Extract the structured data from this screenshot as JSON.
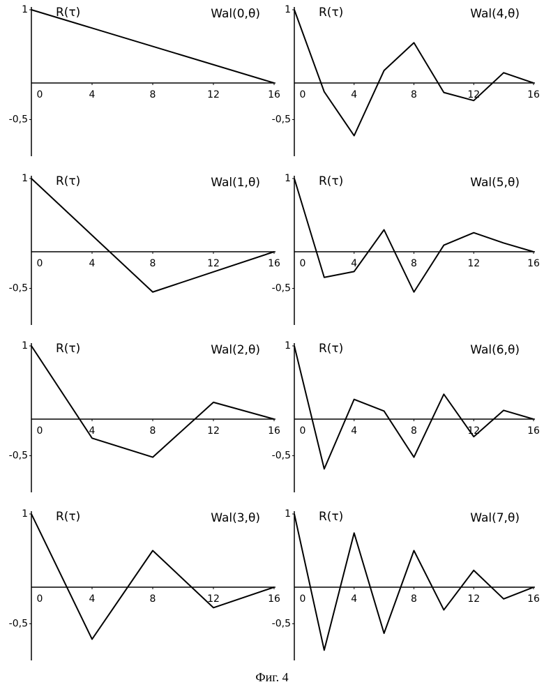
{
  "chart_data": [
    {
      "type": "line",
      "title": "Wal(0,θ)",
      "ylabel": "R(τ)",
      "x": [
        0,
        16
      ],
      "values": [
        1,
        0
      ],
      "xlim": [
        0,
        16
      ],
      "ylim": [
        -1,
        1
      ],
      "xticks": [
        0,
        4,
        8,
        12,
        16
      ],
      "yticks": [
        1,
        {
          "value": -0.5,
          "label": "-0,5"
        }
      ],
      "color": "#000000"
    },
    {
      "type": "line",
      "title": "Wal(4,θ)",
      "ylabel": "R(τ)",
      "x": [
        0,
        2,
        4,
        6,
        8,
        10,
        12,
        14,
        16
      ],
      "values": [
        1,
        -0.12,
        -0.72,
        0.17,
        0.55,
        -0.13,
        -0.24,
        0.14,
        0
      ],
      "xlim": [
        0,
        16
      ],
      "ylim": [
        -1,
        1
      ],
      "xticks": [
        0,
        4,
        8,
        12,
        16
      ],
      "yticks": [
        1,
        {
          "value": -0.5,
          "label": "-0,5"
        }
      ],
      "color": "#000000"
    },
    {
      "type": "line",
      "title": "Wal(1,θ)",
      "ylabel": "R(τ)",
      "x": [
        0,
        8,
        16
      ],
      "values": [
        1,
        -0.55,
        0
      ],
      "xlim": [
        0,
        16
      ],
      "ylim": [
        -1,
        1
      ],
      "xticks": [
        0,
        4,
        8,
        12,
        16
      ],
      "yticks": [
        1,
        {
          "value": -0.5,
          "label": "-0,5"
        }
      ],
      "color": "#000000"
    },
    {
      "type": "line",
      "title": "Wal(5,θ)",
      "ylabel": "R(τ)",
      "x": [
        0,
        2,
        4,
        6,
        8,
        10,
        12,
        14,
        16
      ],
      "values": [
        1,
        -0.35,
        -0.27,
        0.3,
        -0.55,
        0.09,
        0.26,
        0.12,
        0
      ],
      "xlim": [
        0,
        16
      ],
      "ylim": [
        -1,
        1
      ],
      "xticks": [
        0,
        4,
        8,
        12,
        16
      ],
      "yticks": [
        1,
        {
          "value": -0.5,
          "label": "-0,5"
        }
      ],
      "color": "#000000"
    },
    {
      "type": "line",
      "title": "Wal(2,θ)",
      "ylabel": "R(τ)",
      "x": [
        0,
        4,
        8,
        12,
        16
      ],
      "values": [
        1,
        -0.26,
        -0.52,
        0.23,
        0
      ],
      "xlim": [
        0,
        16
      ],
      "ylim": [
        -1,
        1
      ],
      "xticks": [
        0,
        4,
        8,
        12,
        16
      ],
      "yticks": [
        1,
        {
          "value": -0.5,
          "label": "-0,5"
        }
      ],
      "color": "#000000"
    },
    {
      "type": "line",
      "title": "Wal(6,θ)",
      "ylabel": "R(τ)",
      "x": [
        0,
        2,
        4,
        6,
        8,
        10,
        12,
        14,
        16
      ],
      "values": [
        1,
        -0.68,
        0.27,
        0.11,
        -0.52,
        0.34,
        -0.24,
        0.12,
        0
      ],
      "xlim": [
        0,
        16
      ],
      "ylim": [
        -1,
        1
      ],
      "xticks": [
        0,
        4,
        8,
        12,
        16
      ],
      "yticks": [
        1,
        {
          "value": -0.5,
          "label": "-0,5"
        }
      ],
      "color": "#000000"
    },
    {
      "type": "line",
      "title": "Wal(3,θ)",
      "ylabel": "R(τ)",
      "x": [
        0,
        4,
        8,
        12,
        16
      ],
      "values": [
        1,
        -0.71,
        0.5,
        -0.28,
        0
      ],
      "xlim": [
        0,
        16
      ],
      "ylim": [
        -1,
        1
      ],
      "xticks": [
        0,
        4,
        8,
        12,
        16
      ],
      "yticks": [
        1,
        {
          "value": -0.5,
          "label": "-0,5"
        }
      ],
      "color": "#000000"
    },
    {
      "type": "line",
      "title": "Wal(7,θ)",
      "ylabel": "R(τ)",
      "x": [
        0,
        2,
        4,
        6,
        8,
        10,
        12,
        14,
        16
      ],
      "values": [
        1,
        -0.86,
        0.74,
        -0.63,
        0.5,
        -0.31,
        0.23,
        -0.16,
        0
      ],
      "xlim": [
        0,
        16
      ],
      "ylim": [
        -1,
        1
      ],
      "xticks": [
        0,
        4,
        8,
        12,
        16
      ],
      "yticks": [
        1,
        {
          "value": -0.5,
          "label": "-0,5"
        }
      ],
      "color": "#000000"
    }
  ],
  "caption": "Фиг. 4"
}
